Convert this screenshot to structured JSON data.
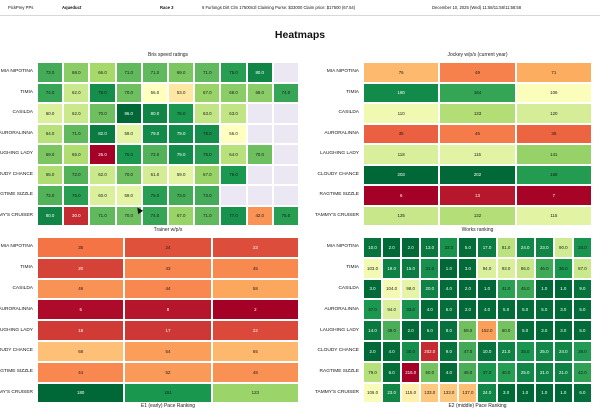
{
  "topbar": {
    "app": "PickPrey PPs",
    "track": "Aqueduct",
    "race": "Race 3",
    "conditions": "6 Furlongs Dirt Clm 17500n2l Claiming Purse: $33000 Claim price: $17500 (67.54)",
    "date": "December 10, 2025 (Wed) 11:58/11:58/11:58:58"
  },
  "page": {
    "title": "Heatmaps"
  },
  "horses": [
    "MIA NIPOTINA",
    "TIMIA",
    "CASILDA",
    "AURORALINNA",
    "LAUGHING LADY",
    "CLOUDY CHANCE",
    "RAGTIME SIZZLE",
    "TAMMY'S CRUISER"
  ],
  "legend_colors": {
    "low": "#a50026",
    "mid": "#ffffbf",
    "high": "#006837",
    "empty": "#ebe8f3"
  },
  "panels": {
    "bris": {
      "title": "Bris speed ratings",
      "rows": [
        [
          "73.0",
          "68.0",
          "66.0",
          "71.0",
          "71.0",
          "69.0",
          "71.0",
          "75.0",
          "80.0"
        ],
        [
          "74.0",
          "62.0",
          "78.0",
          "70.0",
          "56.0",
          "53.0",
          "67.0",
          "68.0",
          "68.0",
          "74.0"
        ],
        [
          "60.0",
          "62.0",
          "70.0",
          "86.0",
          "80.0",
          "76.0",
          "63.0",
          "63.0"
        ],
        [
          "64.0",
          "71.0",
          "82.0",
          "59.0",
          "79.0",
          "79.0",
          "78.0",
          "56.0"
        ],
        [
          "69.0",
          "65.0",
          "26.0",
          "76.0",
          "72.0",
          "79.0",
          "75.0",
          "64.0",
          "70.0"
        ],
        [
          "65.0",
          "72.0",
          "62.0",
          "70.0",
          "61.0",
          "59.0",
          "67.0",
          "76.0"
        ],
        [
          "72.0",
          "75.0",
          "60.0",
          "59.0",
          "75.0",
          "73.0",
          "73.0"
        ],
        [
          "80.0",
          "30.0",
          "71.0",
          "70.0",
          "74.0",
          "67.0",
          "71.0",
          "77.0",
          "42.0",
          "75.0"
        ]
      ]
    },
    "jockey": {
      "title": "Jockey w/p/s (current year)",
      "rows": [
        [
          "76",
          "49",
          "71"
        ],
        [
          "180",
          "164",
          "106"
        ],
        [
          "110",
          "133",
          "120"
        ],
        [
          "35",
          "46",
          "36"
        ],
        [
          "118",
          "115",
          "141"
        ],
        [
          "203",
          "202",
          "168"
        ],
        [
          "6",
          "13",
          "7"
        ],
        [
          "125",
          "132",
          "115"
        ]
      ]
    },
    "trainer": {
      "title": "Trainer w/p/s",
      "caption": "E1 (early) Pace Ranking",
      "rows": [
        [
          "35",
          "24",
          "23"
        ],
        [
          "20",
          "43",
          "45"
        ],
        [
          "49",
          "44",
          "58"
        ],
        [
          "5",
          "8",
          "2"
        ],
        [
          "18",
          "17",
          "22"
        ],
        [
          "68",
          "54",
          "65"
        ],
        [
          "44",
          "52",
          "48"
        ],
        [
          "180",
          "151",
          "123"
        ]
      ]
    },
    "works": {
      "title": "Works ranking",
      "caption": "E2 (middle) Pace Ranking",
      "rows": [
        [
          "10.0",
          "2.0",
          "2.0",
          "13.0",
          "33.0",
          "5.0",
          "17.0",
          "81.0",
          "24.0",
          "23.0",
          "90.0",
          "34.0"
        ],
        [
          "103.0",
          "19.0",
          "15.0",
          "31.0",
          "1.0",
          "3.0",
          "94.0",
          "93.0",
          "86.0",
          "46.0",
          "36.0",
          "87.0"
        ],
        [
          "3.0",
          "104.0",
          "98.0",
          "20.0",
          "4.0",
          "2.0",
          "1.0",
          "41.0",
          "45.0",
          "1.0",
          "1.0",
          "9.0"
        ],
        [
          "37.0",
          "94.0",
          "33.0",
          "4.0",
          "6.0",
          "2.0",
          "4.0",
          "5.0",
          "5.0",
          "5.0",
          "3.0",
          "5.0"
        ],
        [
          "14.0",
          "49.0",
          "2.0",
          "6.0",
          "8.0",
          "59.0",
          "152.0",
          "60.0",
          "5.0",
          "3.0",
          "3.0",
          "5.0"
        ],
        [
          "2.0",
          "4.0",
          "30.0",
          "202.0",
          "9.0",
          "47.0",
          "10.0",
          "21.0",
          "35.0",
          "25.0",
          "24.0",
          "39.0"
        ],
        [
          "79.0",
          "6.0",
          "216.0",
          "60.0",
          "4.0",
          "49.0",
          "37.0",
          "40.0",
          "25.0",
          "21.0",
          "21.0",
          "42.0"
        ],
        [
          "106.0",
          "23.0",
          "115.0",
          "133.0",
          "133.0",
          "137.0",
          "24.0",
          "3.0",
          "1.0",
          "1.0",
          "1.0",
          "6.0"
        ]
      ]
    }
  }
}
